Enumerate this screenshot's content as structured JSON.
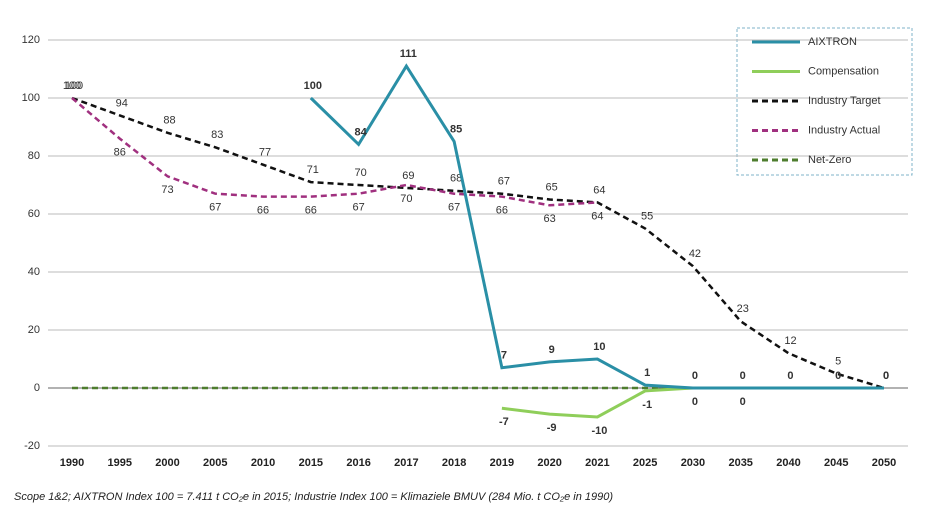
{
  "chart_data": {
    "type": "line",
    "categories": [
      "1990",
      "1995",
      "2000",
      "2005",
      "2010",
      "2015",
      "2016",
      "2017",
      "2018",
      "2019",
      "2020",
      "2021",
      "2025",
      "2030",
      "2035",
      "2040",
      "2045",
      "2050"
    ],
    "series": [
      {
        "name": "AIXTRON",
        "color": "#2a8fa6",
        "dash": false,
        "data_labels": true,
        "values": [
          null,
          null,
          null,
          null,
          null,
          100,
          84,
          111,
          85,
          7,
          9,
          10,
          1,
          0,
          0,
          0,
          0,
          0
        ]
      },
      {
        "name": "Compensation",
        "color": "#8fce5a",
        "dash": false,
        "data_labels": true,
        "values": [
          null,
          null,
          null,
          null,
          null,
          null,
          null,
          null,
          null,
          -7,
          -9,
          -10,
          -1,
          0,
          0,
          null,
          null,
          null
        ]
      },
      {
        "name": "Industry Target",
        "color": "#111111",
        "dash": true,
        "data_labels": true,
        "values": [
          100,
          94,
          88,
          83,
          77,
          71,
          70,
          69,
          68,
          67,
          65,
          64,
          55,
          42,
          23,
          12,
          5,
          0
        ]
      },
      {
        "name": "Industry Actual",
        "color": "#a0307f",
        "dash": true,
        "data_labels": true,
        "values": [
          100,
          86,
          73,
          67,
          66,
          66,
          67,
          70,
          67,
          66,
          63,
          64,
          null,
          null,
          null,
          null,
          null,
          null
        ]
      },
      {
        "name": "Net-Zero",
        "color": "#4e7d2e",
        "dash": true,
        "data_labels": false,
        "values": [
          0,
          0,
          0,
          0,
          0,
          0,
          0,
          0,
          0,
          0,
          0,
          0,
          0,
          0,
          0,
          0,
          0,
          0
        ]
      }
    ],
    "ylim": [
      -20,
      120
    ],
    "yticks": [
      -20,
      0,
      20,
      40,
      60,
      80,
      100,
      120
    ],
    "grid": true,
    "legend": "top-right",
    "footnote": "Scope 1&2; AIXTRON Index 100 = 7.411 t CO₂e in 2015; Industrie Index 100  = Klimaziele BMUV (284 Mio. t CO₂e in 1990)"
  }
}
